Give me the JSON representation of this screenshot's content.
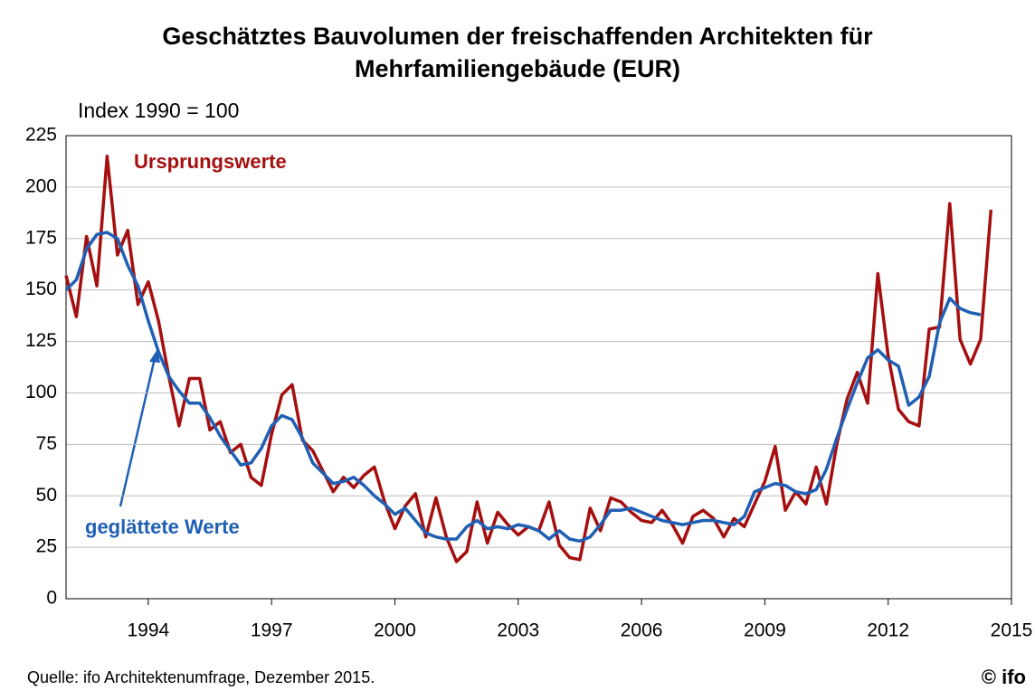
{
  "chart_data": {
    "type": "line",
    "title": "Geschätztes Bauvolumen der freischaffenden Architekten für",
    "title_line2": "Mehrfamiliengebäude (EUR)",
    "subtitle": "Index 1990 = 100",
    "source": "Quelle: ifo Architektenumfrage, Dezember  2015.",
    "logo": "© ifo",
    "x": [
      1992,
      1992.25,
      1992.5,
      1992.75,
      1993,
      1993.25,
      1993.5,
      1993.75,
      1994,
      1994.25,
      1994.5,
      1994.75,
      1995,
      1995.25,
      1995.5,
      1995.75,
      1996,
      1996.25,
      1996.5,
      1996.75,
      1997,
      1997.25,
      1997.5,
      1997.75,
      1998,
      1998.25,
      1998.5,
      1998.75,
      1999,
      1999.25,
      1999.5,
      1999.75,
      2000,
      2000.25,
      2000.5,
      2000.75,
      2001,
      2001.25,
      2001.5,
      2001.75,
      2002,
      2002.25,
      2002.5,
      2002.75,
      2003,
      2003.25,
      2003.5,
      2003.75,
      2004,
      2004.25,
      2004.5,
      2004.75,
      2005,
      2005.25,
      2005.5,
      2005.75,
      2006,
      2006.25,
      2006.5,
      2006.75,
      2007,
      2007.25,
      2007.5,
      2007.75,
      2008,
      2008.25,
      2008.5,
      2008.75,
      2009,
      2009.25,
      2009.5,
      2009.75,
      2010,
      2010.25,
      2010.5,
      2010.75,
      2011,
      2011.25,
      2011.5,
      2011.75,
      2012,
      2012.25,
      2012.5,
      2012.75,
      2013,
      2013.25,
      2013.5,
      2013.75,
      2014,
      2014.25,
      2014.5
    ],
    "series": [
      {
        "name": "Ursprungswerte",
        "color": "#a50f0f",
        "values": [
          157,
          137,
          176,
          152,
          215,
          167,
          179,
          143,
          154,
          135,
          108,
          84,
          107,
          107,
          82,
          86,
          71,
          75,
          59,
          55,
          80,
          99,
          104,
          77,
          72,
          62,
          52,
          59,
          54,
          60,
          64,
          47,
          34,
          45,
          51,
          30,
          49,
          30,
          18,
          23,
          47,
          27,
          42,
          36,
          31,
          35,
          33,
          47,
          26,
          20,
          19,
          44,
          33,
          49,
          47,
          42,
          38,
          37,
          43,
          36,
          27,
          40,
          43,
          39,
          30,
          39,
          35,
          46,
          57,
          74,
          43,
          52,
          46,
          64,
          46,
          75,
          97,
          110,
          95,
          158,
          118,
          92,
          86,
          84,
          131,
          132,
          192,
          126,
          114,
          126,
          189
        ]
      },
      {
        "name": "geglättete Werte",
        "color": "#1f5fb4",
        "values": [
          150,
          155,
          170,
          177,
          178,
          175,
          162,
          152,
          135,
          120,
          108,
          101,
          95,
          95,
          88,
          79,
          72,
          65,
          66,
          73,
          84,
          89,
          87,
          78,
          66,
          61,
          56,
          57,
          59,
          55,
          50,
          46,
          41,
          44,
          38,
          32,
          30,
          29,
          29,
          35,
          38,
          34,
          35,
          34,
          36,
          35,
          33,
          29,
          33,
          29,
          28,
          30,
          36,
          43,
          43,
          44,
          42,
          40,
          38,
          37,
          36,
          37,
          38,
          38,
          37,
          36,
          40,
          52,
          54,
          56,
          55,
          52,
          51,
          53,
          63,
          78,
          92,
          105,
          117,
          121,
          116,
          113,
          94,
          98,
          108,
          134,
          146,
          141,
          139,
          138,
          null
        ]
      }
    ],
    "xlim": [
      1992,
      2015
    ],
    "xticks": [
      1994,
      1997,
      2000,
      2003,
      2006,
      2009,
      2012,
      2015
    ],
    "ylim": [
      0,
      225
    ],
    "yticks": [
      0,
      25,
      50,
      75,
      100,
      125,
      150,
      175,
      200,
      225
    ],
    "grid": true
  }
}
